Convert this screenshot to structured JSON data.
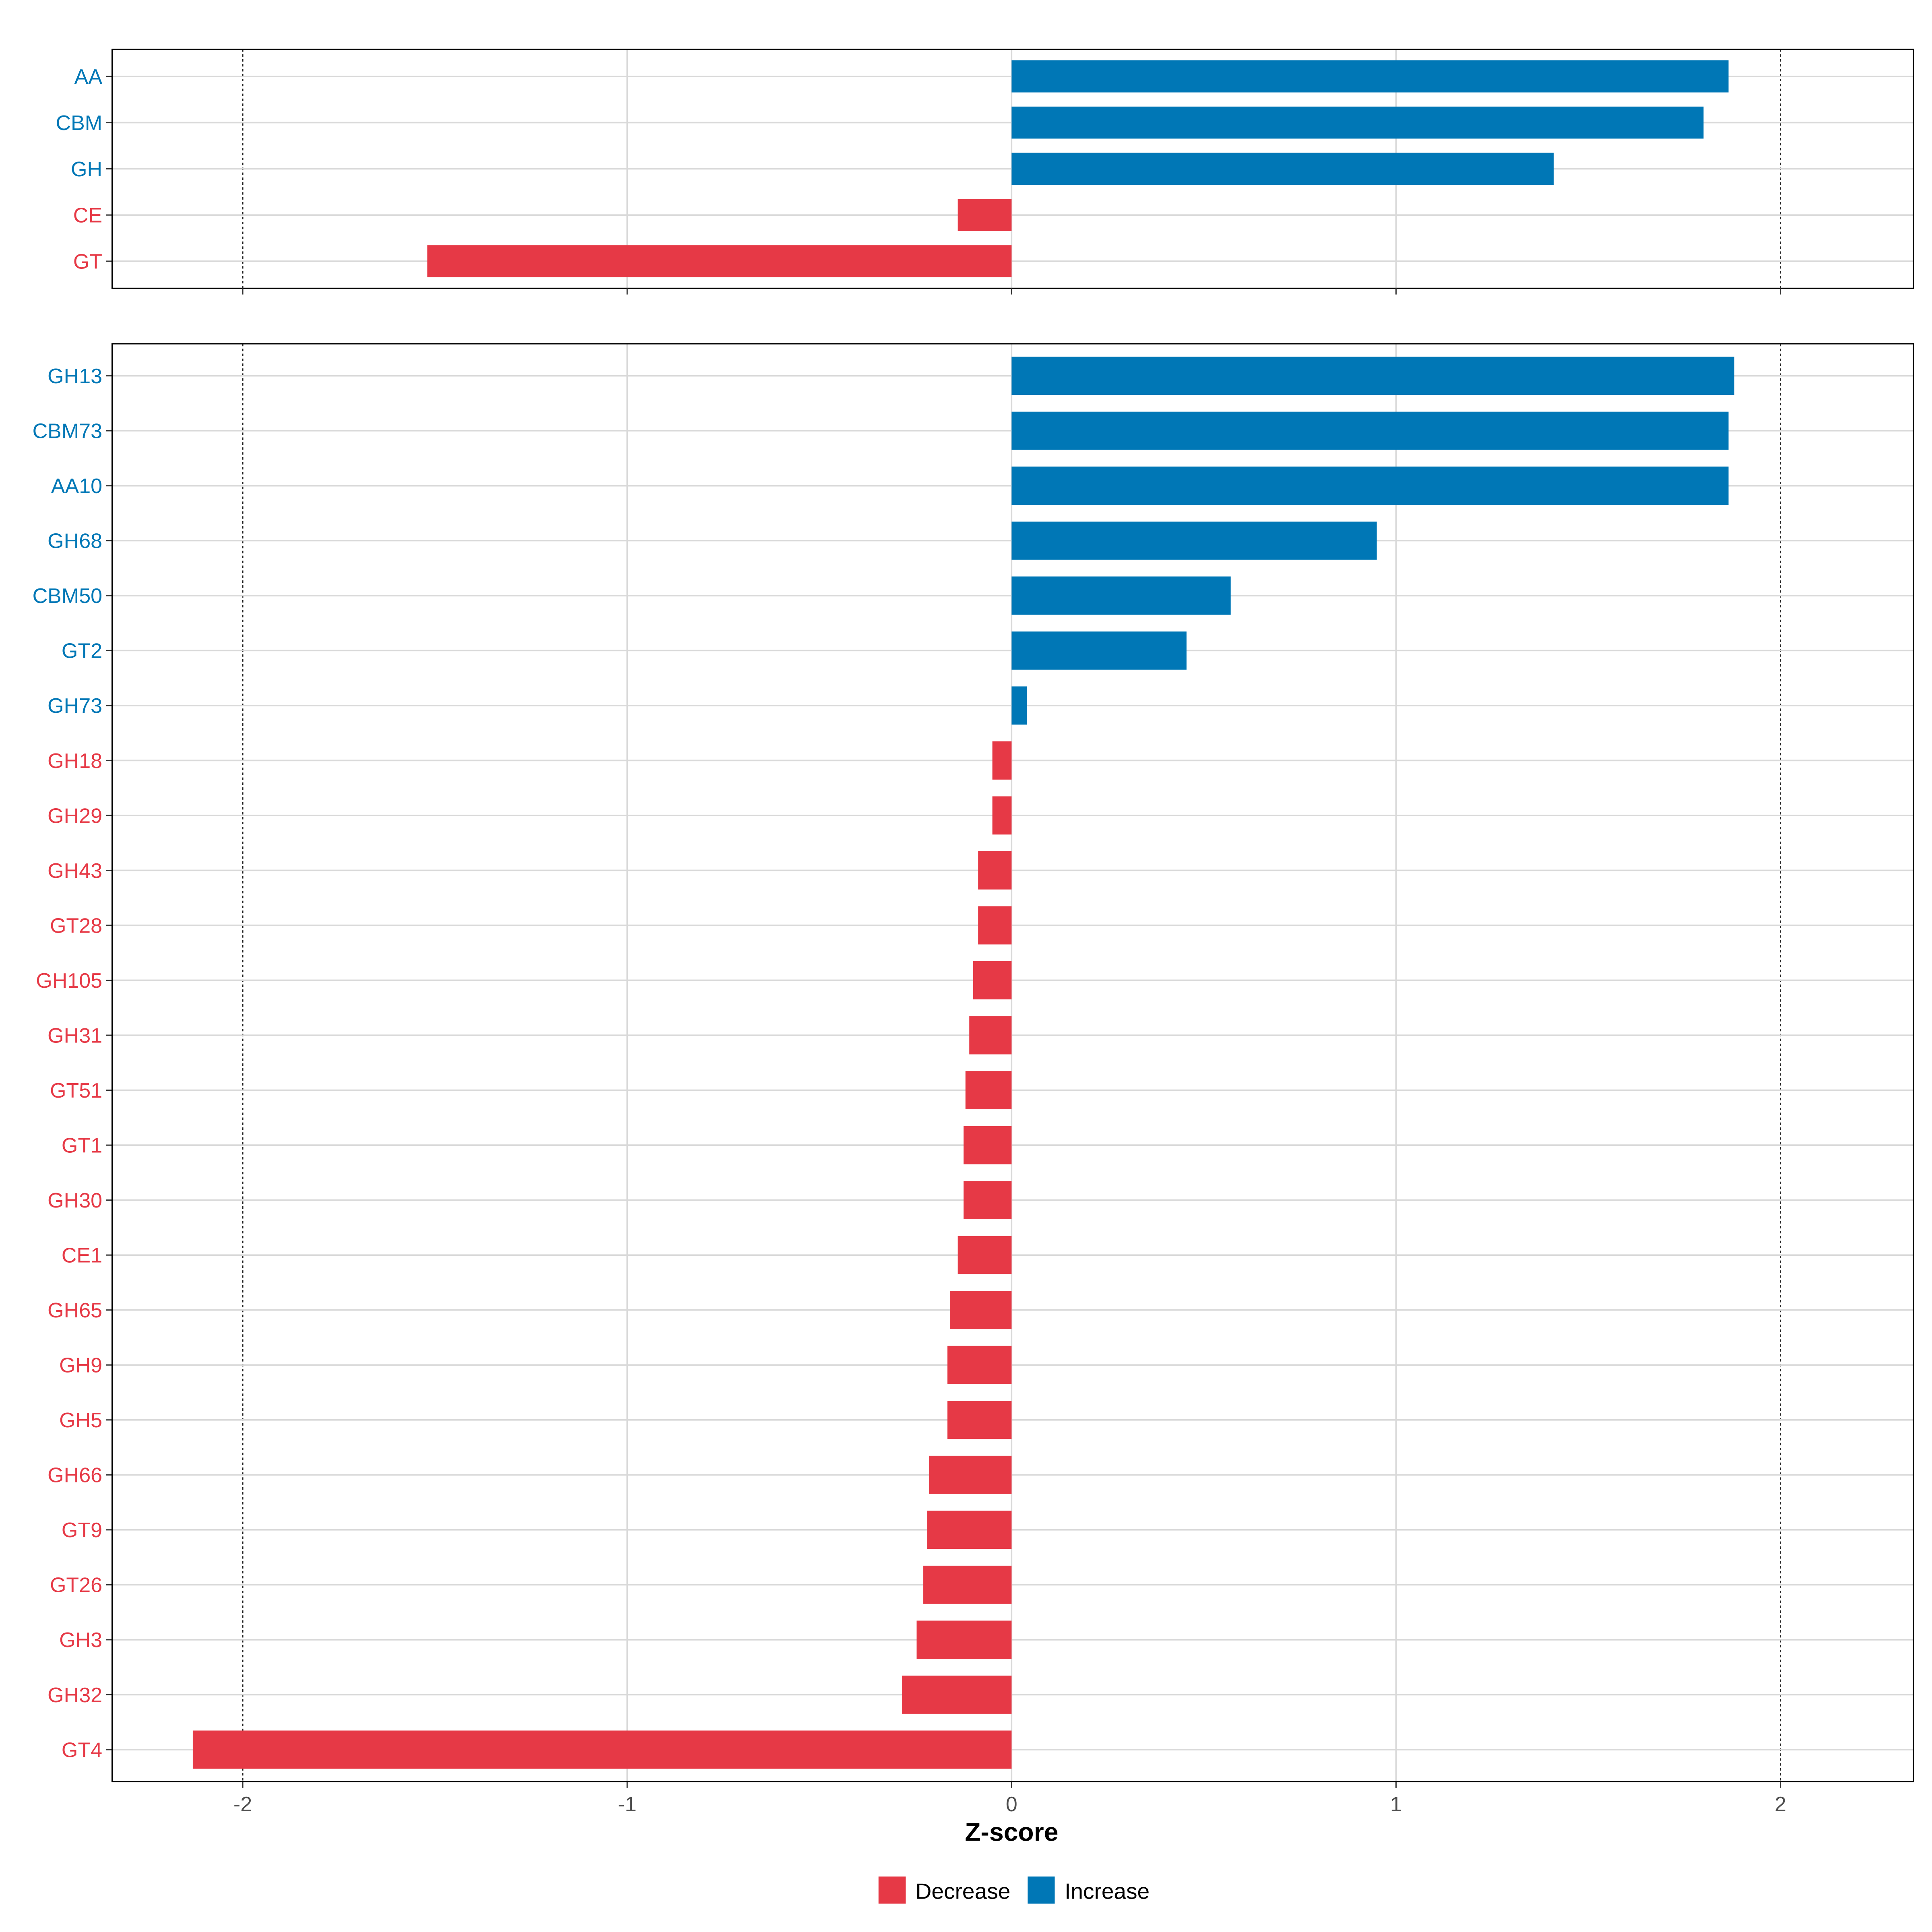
{
  "chart_data": {
    "type": "bar",
    "orientation": "horizontal",
    "xlabel": "Z-score",
    "xlim": [
      -2.35,
      2.35
    ],
    "x_ticks": [
      "-2",
      "-1",
      "0",
      "1",
      "2"
    ],
    "x_tick_values": [
      -2,
      -1,
      0,
      1,
      2
    ],
    "reference_lines": [
      -2,
      2
    ],
    "grid": true,
    "legend": {
      "placement": "bottom",
      "entries": [
        {
          "label": "Decrease",
          "color": "#E63946"
        },
        {
          "label": "Increase",
          "color": "#0077B6"
        }
      ]
    },
    "panels": [
      {
        "categories": [
          "AA",
          "CBM",
          "GH",
          "CE",
          "GT"
        ],
        "values": [
          1.865,
          1.8,
          1.41,
          -0.14,
          -1.52
        ]
      },
      {
        "categories": [
          "GH13",
          "CBM73",
          "AA10",
          "GH68",
          "CBM50",
          "GT2",
          "GH73",
          "GH18",
          "GH29",
          "GH43",
          "GT28",
          "GH105",
          "GH31",
          "GT51",
          "GT1",
          "GH30",
          "CE1",
          "GH65",
          "GH9",
          "GH5",
          "GH66",
          "GT9",
          "GT26",
          "GH3",
          "GH32",
          "GT4"
        ],
        "values": [
          1.88,
          1.865,
          1.865,
          0.95,
          0.57,
          0.455,
          0.04,
          -0.05,
          -0.05,
          -0.087,
          -0.087,
          -0.1,
          -0.11,
          -0.12,
          -0.125,
          -0.125,
          -0.14,
          -0.16,
          -0.167,
          -0.167,
          -0.215,
          -0.22,
          -0.23,
          -0.247,
          -0.285,
          -2.13
        ]
      }
    ]
  }
}
